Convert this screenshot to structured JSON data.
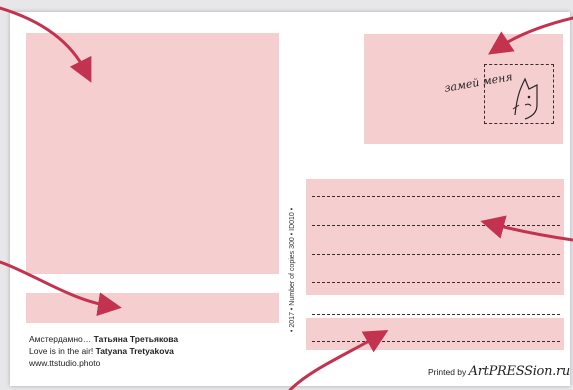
{
  "caption": {
    "line1_ru_prefix": "Амстердамно…",
    "line1_ru_author": "Татьяна Третьякова",
    "line2_en_prefix": "Love is in the air!",
    "line2_en_author": "Tatyana Tretyakova"
  },
  "website": "www.ttstudio.photo",
  "vertical_info": "• 2017 • Number of copies 300 • ID010 •",
  "printed_by": {
    "prefix": "Printed by",
    "brand": "ArtPRESSion.ru"
  },
  "stamp_text": "замей меня",
  "colors": {
    "placeholder_pink": "#f5cfd0",
    "arrow": "#c3324f",
    "card": "#ffffff"
  }
}
